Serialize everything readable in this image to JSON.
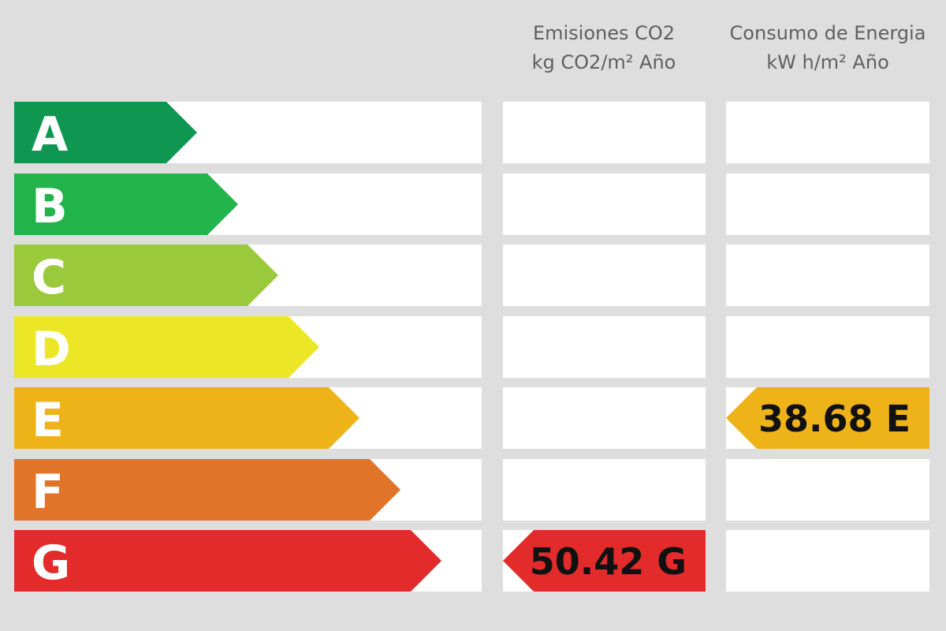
{
  "chart_data": {
    "type": "energy-rating",
    "grades": [
      {
        "letter": "A",
        "color": "#0f9650"
      },
      {
        "letter": "B",
        "color": "#22b34a"
      },
      {
        "letter": "C",
        "color": "#9aca3c"
      },
      {
        "letter": "D",
        "color": "#ebe726"
      },
      {
        "letter": "E",
        "color": "#efb31a"
      },
      {
        "letter": "F",
        "color": "#e07428"
      },
      {
        "letter": "G",
        "color": "#e22b2a"
      }
    ],
    "columns": [
      {
        "id": "co2",
        "title_line1": "Emisiones CO2",
        "title_line2": "kg CO2/m² Año",
        "value_label": "50.42 G",
        "value": 50.42,
        "grade": "G"
      },
      {
        "id": "energy",
        "title_line1": "Consumo de Energia",
        "title_line2": "kW h/m² Año",
        "value_label": "38.68 E",
        "value": 38.68,
        "grade": "E"
      }
    ]
  }
}
